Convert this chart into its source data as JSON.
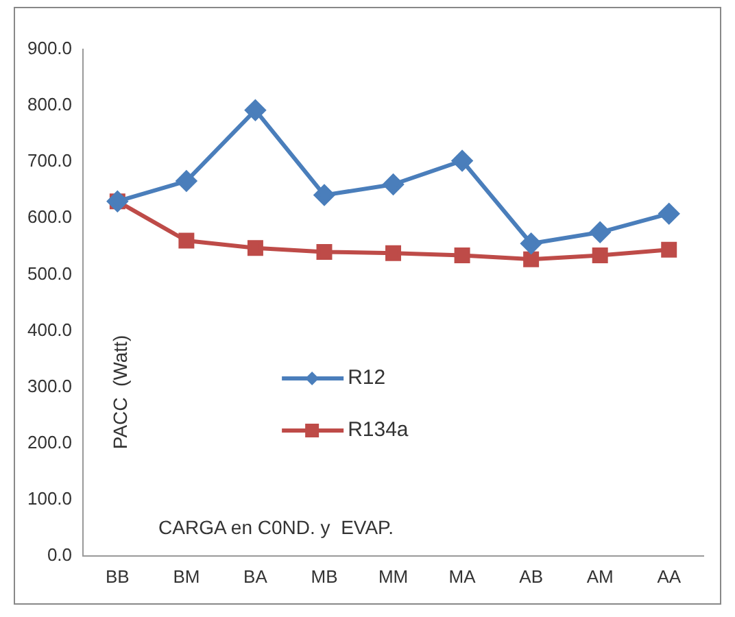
{
  "chart_data": {
    "type": "line",
    "xlabel": "CARGA en C0ND. y  EVAP.",
    "ylabel": "PACC  (Watt)",
    "categories": [
      "BB",
      "BM",
      "BA",
      "MB",
      "MM",
      "MA",
      "AB",
      "AM",
      "AA"
    ],
    "series": [
      {
        "name": "R12",
        "color": "#4a7ebb",
        "marker": "diamond",
        "values": [
          630,
          666,
          792,
          641,
          660,
          702,
          555,
          575,
          608
        ]
      },
      {
        "name": "R134a",
        "color": "#be4b48",
        "marker": "square",
        "values": [
          630,
          560,
          547,
          540,
          538,
          534,
          527,
          534,
          544
        ]
      }
    ],
    "ylim": [
      0,
      900
    ],
    "yticks": [
      {
        "value": 0,
        "label": "0.0"
      },
      {
        "value": 100,
        "label": "100.0"
      },
      {
        "value": 200,
        "label": "200.0"
      },
      {
        "value": 300,
        "label": "300.0"
      },
      {
        "value": 400,
        "label": "400.0"
      },
      {
        "value": 500,
        "label": "500.0"
      },
      {
        "value": 600,
        "label": "600.0"
      },
      {
        "value": 700,
        "label": "700.0"
      },
      {
        "value": 800,
        "label": "800.0"
      },
      {
        "value": 900,
        "label": "900.0"
      }
    ],
    "grid": false,
    "legend": "center",
    "line_style": "solid"
  }
}
